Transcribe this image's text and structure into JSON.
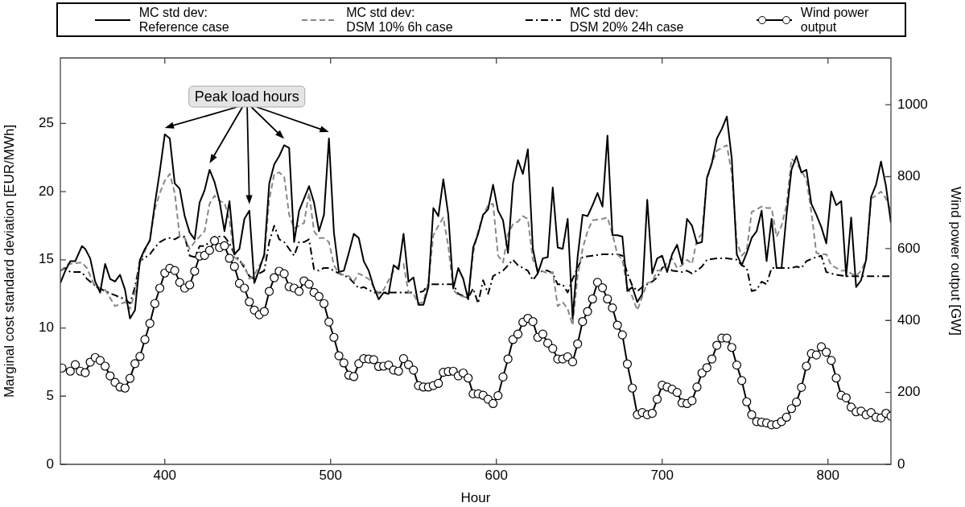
{
  "chart_data": {
    "type": "line",
    "xlabel": "Hour",
    "ylabel": "Marginal cost standard deviation [EUR/MWh]",
    "y2label": "Wind power output [GW]",
    "xlim": [
      337,
      838
    ],
    "xticks": [
      400,
      500,
      600,
      700,
      800
    ],
    "ylim": [
      0,
      29.8
    ],
    "yticks": [
      0,
      5,
      10,
      15,
      20,
      25
    ],
    "y2lim": [
      0,
      1130
    ],
    "y2ticks": [
      0,
      200,
      400,
      600,
      800,
      1000
    ],
    "grid": false,
    "legend": "top",
    "annotations": [
      "Peak load hours"
    ],
    "series": [
      {
        "name": "MC std dev:\nReference case",
        "color": "#000000",
        "line_style": "solid",
        "x": [
          337,
          340,
          343,
          346,
          350,
          352,
          355,
          358,
          361,
          364,
          367,
          370,
          373,
          376,
          379,
          382,
          385,
          388,
          391,
          394,
          397,
          400,
          403,
          406,
          409,
          412,
          415,
          418,
          421,
          424,
          427,
          430,
          433,
          436,
          439,
          442,
          445,
          448,
          451,
          454,
          457,
          460,
          463,
          466,
          469,
          472,
          475,
          478,
          481,
          484,
          487,
          490,
          493,
          496,
          499,
          502,
          505,
          508,
          511,
          514,
          517,
          520,
          523,
          526,
          529,
          532,
          535,
          538,
          541,
          544,
          547,
          550,
          553,
          556,
          559,
          562,
          565,
          568,
          571,
          574,
          577,
          580,
          583,
          586,
          589,
          592,
          595,
          598,
          601,
          604,
          607,
          610,
          613,
          616,
          619,
          622,
          625,
          628,
          631,
          634,
          637,
          640,
          643,
          646,
          649,
          652,
          655,
          658,
          661,
          664,
          667,
          670,
          673,
          676,
          679,
          682,
          685,
          688,
          691,
          694,
          697,
          700,
          703,
          706,
          709,
          712,
          715,
          718,
          721,
          724,
          727,
          730,
          733,
          736,
          739,
          742,
          745,
          748,
          751,
          754,
          757,
          760,
          763,
          766,
          769,
          772,
          775,
          778,
          781,
          784,
          787,
          790,
          793,
          796,
          799,
          802,
          805,
          808,
          811,
          814,
          817,
          820,
          823,
          826,
          829,
          832,
          835,
          838
        ],
        "values": [
          13.3,
          14.2,
          14.9,
          14.9,
          16.0,
          15.8,
          15.1,
          13.4,
          12.6,
          14.7,
          13.6,
          13.4,
          13.9,
          12.8,
          10.7,
          11.3,
          15.0,
          15.8,
          16.4,
          19.1,
          21.5,
          24.2,
          23.9,
          20.6,
          20.2,
          18.2,
          17.0,
          16.5,
          19.2,
          20.1,
          21.6,
          20.7,
          19.3,
          17.1,
          19.3,
          15.4,
          15.8,
          18.0,
          18.6,
          13.3,
          14.3,
          15.4,
          20.6,
          22.0,
          22.6,
          23.4,
          23.2,
          16.3,
          18.6,
          19.5,
          20.4,
          19.2,
          17.1,
          18.3,
          23.9,
          17.0,
          14.1,
          14.2,
          15.5,
          16.9,
          16.6,
          14.9,
          14.2,
          13.0,
          12.1,
          12.6,
          12.5,
          14.6,
          14.3,
          16.9,
          13.4,
          13.7,
          11.7,
          11.7,
          13.0,
          18.8,
          18.2,
          20.9,
          18.3,
          12.9,
          14.4,
          13.6,
          12.1,
          15.9,
          16.9,
          18.3,
          18.7,
          20.5,
          18.6,
          17.9,
          15.5,
          20.6,
          22.3,
          21.3,
          23.1,
          15.8,
          14.0,
          15.1,
          15.2,
          20.3,
          15.9,
          15.8,
          18.0,
          10.7,
          15.2,
          18.3,
          18.2,
          19.0,
          19.9,
          18.9,
          24.1,
          16.8,
          16.8,
          16.7,
          12.7,
          13.0,
          11.9,
          12.5,
          19.4,
          14.0,
          15.1,
          15.3,
          14.1,
          15.4,
          16.1,
          14.7,
          18.0,
          17.5,
          16.2,
          16.3,
          21.0,
          22.1,
          23.9,
          24.6,
          25.5,
          22.4,
          15.4,
          14.6,
          15.5,
          16.6,
          17.1,
          18.6,
          14.9,
          18.0,
          14.4,
          14.4,
          18.3,
          21.6,
          22.6,
          21.4,
          21.6,
          19.1,
          18.3,
          17.4,
          16.2,
          20.0,
          19.0,
          19.3,
          13.8,
          18.1,
          13.0,
          13.5,
          15.0,
          19.6,
          20.5,
          22.2,
          20.4,
          17.7
        ]
      },
      {
        "name": "MC std dev:\nDSM 10% 6h case",
        "color": "#888888",
        "line_style": "dashed",
        "x": [
          337,
          342,
          350,
          353,
          358,
          364,
          370,
          376,
          379,
          382,
          385,
          391,
          394,
          397,
          400,
          403,
          406,
          409,
          412,
          415,
          418,
          424,
          427,
          430,
          433,
          436,
          439,
          442,
          448,
          451,
          454,
          460,
          463,
          466,
          469,
          472,
          475,
          478,
          481,
          484,
          487,
          490,
          493,
          496,
          499,
          502,
          505,
          511,
          514,
          517,
          523,
          526,
          529,
          532,
          538,
          541,
          544,
          547,
          550,
          553,
          556,
          559,
          562,
          565,
          568,
          571,
          574,
          577,
          583,
          586,
          589,
          592,
          595,
          598,
          601,
          604,
          607,
          610,
          613,
          616,
          619,
          622,
          625,
          631,
          634,
          637,
          640,
          643,
          646,
          649,
          652,
          655,
          658,
          664,
          667,
          670,
          673,
          676,
          679,
          682,
          685,
          688,
          691,
          694,
          697,
          700,
          703,
          706,
          709,
          712,
          715,
          718,
          721,
          724,
          727,
          730,
          733,
          739,
          742,
          745,
          748,
          751,
          754,
          760,
          763,
          766,
          769,
          772,
          775,
          778,
          781,
          784,
          787,
          790,
          793,
          796,
          799,
          802,
          805,
          808,
          811,
          814,
          817,
          820,
          823,
          826,
          829,
          832,
          835,
          838
        ],
        "values": [
          14.2,
          14.7,
          14.8,
          14.4,
          13.0,
          12.8,
          11.6,
          11.9,
          11.4,
          12.6,
          14.8,
          16.5,
          18.7,
          19.9,
          20.8,
          21.3,
          19.9,
          16.7,
          16.6,
          15.8,
          16.3,
          17.1,
          19.1,
          19.7,
          19.3,
          19.2,
          17.9,
          15.2,
          14.6,
          13.6,
          13.9,
          15.2,
          19.4,
          21.3,
          21.4,
          21.1,
          18.3,
          17.3,
          17.5,
          17.7,
          19.9,
          17.1,
          16.6,
          16.6,
          16.3,
          14.6,
          14.0,
          13.8,
          13.4,
          14.0,
          13.6,
          13.0,
          12.5,
          12.8,
          14.2,
          14.6,
          14.7,
          12.6,
          12.5,
          11.8,
          11.9,
          13.4,
          16.8,
          17.5,
          18.1,
          16.0,
          12.8,
          12.4,
          12.2,
          15.5,
          17.1,
          18.3,
          19.0,
          19.1,
          15.3,
          14.8,
          16.9,
          17.6,
          17.8,
          18.2,
          18.0,
          15.0,
          14.3,
          14.0,
          14.1,
          11.6,
          11.9,
          11.4,
          10.2,
          13.8,
          15.8,
          17.1,
          17.9,
          18.0,
          18.1,
          16.9,
          15.4,
          15.0,
          13.0,
          12.3,
          11.3,
          12.3,
          13.3,
          13.4,
          14.2,
          14.2,
          14.8,
          15.1,
          14.4,
          14.6,
          15.0,
          14.7,
          16.5,
          16.9,
          20.9,
          22.1,
          23.0,
          23.4,
          21.3,
          16.3,
          15.3,
          15.7,
          18.5,
          18.9,
          18.8,
          18.8,
          16.7,
          17.5,
          19.0,
          22.4,
          22.1,
          21.5,
          20.9,
          18.5,
          15.5,
          15.4,
          15.4,
          14.6,
          14.4,
          14.2,
          14.2,
          14.0,
          13.8,
          14.2,
          15.0,
          19.5,
          19.7,
          20.0,
          19.5,
          18.5
        ]
      },
      {
        "name": "MC std dev:\nDSM 20% 24h case",
        "color": "#000000",
        "line_style": "dashdot",
        "x": [
          337,
          340,
          343,
          350,
          353,
          358,
          364,
          370,
          376,
          379,
          382,
          385,
          391,
          394,
          397,
          400,
          403,
          406,
          409,
          412,
          415,
          418,
          421,
          424,
          427,
          430,
          436,
          439,
          442,
          445,
          448,
          451,
          454,
          457,
          460,
          463,
          466,
          469,
          472,
          475,
          478,
          481,
          484,
          487,
          490,
          493,
          496,
          499,
          502,
          505,
          511,
          514,
          517,
          520,
          526,
          532,
          538,
          544,
          553,
          556,
          559,
          565,
          574,
          577,
          583,
          586,
          589,
          592,
          595,
          598,
          604,
          607,
          610,
          613,
          616,
          619,
          622,
          625,
          628,
          631,
          634,
          637,
          640,
          643,
          646,
          649,
          652,
          658,
          664,
          673,
          676,
          679,
          682,
          685,
          688,
          691,
          694,
          697,
          700,
          703,
          706,
          712,
          715,
          718,
          721,
          724,
          727,
          733,
          739,
          745,
          748,
          751,
          754,
          757,
          760,
          763,
          766,
          778,
          781,
          784,
          787,
          793,
          796,
          799,
          805,
          811,
          817,
          838
        ],
        "values": [
          14.2,
          14.4,
          14.1,
          14.1,
          13.6,
          13.1,
          12.7,
          12.4,
          12.1,
          11.8,
          13.0,
          14.9,
          15.4,
          15.9,
          16.3,
          16.5,
          16.6,
          16.5,
          16.7,
          16.7,
          15.3,
          15.2,
          16.0,
          16.0,
          16.3,
          16.7,
          16.7,
          16.2,
          15.4,
          15.0,
          14.4,
          13.8,
          13.6,
          14.0,
          14.2,
          16.3,
          17.5,
          16.5,
          16.3,
          15.8,
          15.3,
          16.3,
          16.3,
          16.5,
          14.3,
          14.2,
          14.4,
          14.4,
          14.2,
          14.0,
          13.7,
          13.3,
          12.9,
          13.0,
          12.6,
          12.6,
          12.6,
          12.6,
          12.6,
          12.7,
          13.2,
          13.2,
          13.2,
          12.5,
          12.2,
          12.9,
          11.8,
          13.5,
          12.5,
          13.8,
          14.2,
          14.6,
          15.0,
          14.6,
          14.4,
          14.2,
          13.5,
          14.0,
          14.2,
          14.2,
          14.0,
          13.2,
          13.2,
          12.6,
          13.6,
          14.4,
          15.2,
          15.3,
          15.4,
          15.4,
          15.3,
          14.0,
          13.1,
          12.7,
          13.0,
          13.2,
          13.4,
          13.7,
          14.4,
          14.6,
          14.2,
          14.1,
          14.2,
          14.0,
          14.2,
          14.5,
          15.0,
          15.1,
          15.1,
          15.0,
          14.6,
          14.4,
          12.7,
          12.8,
          13.4,
          13.2,
          14.4,
          14.4,
          14.5,
          14.4,
          14.9,
          15.2,
          15.3,
          14.1,
          13.9,
          13.8,
          13.8,
          13.8
        ]
      },
      {
        "name": "Wind power\noutput",
        "color": "#000000",
        "line_style": "solid",
        "marker": "circle",
        "axis": "y2",
        "x": [
          338,
          343,
          346,
          349,
          352,
          355,
          358,
          361,
          364,
          367,
          370,
          373,
          376,
          379,
          382,
          385,
          388,
          391,
          394,
          397,
          400,
          403,
          406,
          409,
          412,
          415,
          418,
          421,
          424,
          427,
          430,
          433,
          436,
          439,
          442,
          445,
          448,
          451,
          454,
          457,
          460,
          463,
          466,
          469,
          472,
          475,
          478,
          481,
          484,
          487,
          490,
          493,
          496,
          499,
          502,
          505,
          508,
          511,
          514,
          517,
          520,
          523,
          526,
          529,
          532,
          535,
          538,
          541,
          544,
          547,
          550,
          553,
          556,
          559,
          562,
          565,
          568,
          571,
          574,
          577,
          580,
          583,
          586,
          589,
          592,
          595,
          598,
          601,
          604,
          607,
          610,
          613,
          616,
          619,
          622,
          625,
          628,
          631,
          634,
          637,
          640,
          643,
          646,
          649,
          652,
          655,
          658,
          661,
          664,
          667,
          670,
          673,
          676,
          679,
          682,
          685,
          688,
          691,
          694,
          697,
          700,
          703,
          706,
          709,
          712,
          715,
          718,
          721,
          724,
          727,
          730,
          733,
          736,
          739,
          742,
          745,
          748,
          751,
          754,
          757,
          760,
          763,
          766,
          769,
          772,
          775,
          778,
          781,
          784,
          787,
          790,
          793,
          796,
          799,
          802,
          805,
          808,
          811,
          814,
          817,
          820,
          823,
          826,
          829,
          832,
          835,
          838
        ],
        "values": [
          268,
          259,
          277,
          259,
          255,
          284,
          297,
          289,
          273,
          246,
          228,
          215,
          212,
          239,
          280,
          300,
          347,
          392,
          447,
          490,
          532,
          545,
          539,
          506,
          490,
          499,
          537,
          579,
          581,
          595,
          622,
          603,
          608,
          573,
          550,
          503,
          490,
          452,
          429,
          416,
          425,
          481,
          519,
          537,
          530,
          494,
          490,
          481,
          510,
          501,
          478,
          467,
          447,
          396,
          353,
          302,
          282,
          248,
          244,
          280,
          294,
          293,
          291,
          272,
          273,
          276,
          262,
          259,
          294,
          277,
          262,
          219,
          215,
          215,
          219,
          225,
          256,
          258,
          259,
          246,
          254,
          240,
          196,
          196,
          192,
          181,
          169,
          191,
          243,
          293,
          347,
          362,
          395,
          406,
          397,
          353,
          362,
          337,
          322,
          293,
          293,
          299,
          285,
          335,
          397,
          425,
          460,
          506,
          491,
          460,
          435,
          387,
          360,
          279,
          212,
          138,
          144,
          138,
          142,
          181,
          220,
          215,
          209,
          200,
          171,
          169,
          177,
          215,
          254,
          269,
          293,
          331,
          351,
          351,
          325,
          276,
          233,
          174,
          138,
          119,
          117,
          115,
          110,
          111,
          119,
          131,
          155,
          173,
          214,
          273,
          308,
          304,
          327,
          312,
          289,
          240,
          192,
          185,
          159,
          146,
          148,
          138,
          144,
          131,
          129,
          142,
          134
        ]
      }
    ]
  }
}
